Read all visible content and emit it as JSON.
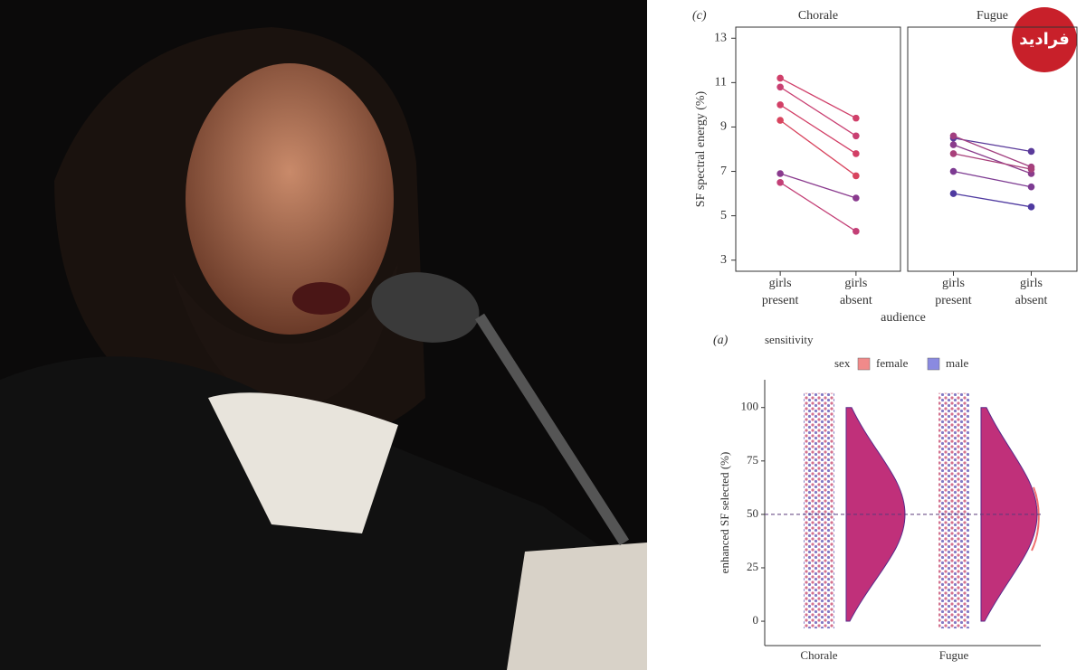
{
  "watermark": "فرادید",
  "chart_data": [
    {
      "type": "slope",
      "label": "(c)",
      "x_label": "audience",
      "y_label": "SF spectral energy (%)",
      "categories": [
        "girls present",
        "girls absent"
      ],
      "ylim": [
        2.5,
        13.5
      ],
      "yticks": [
        3,
        5,
        7,
        9,
        11,
        13
      ],
      "panels": [
        {
          "title": "Chorale",
          "series": [
            {
              "color": "#d0406a",
              "values": [
                11.2,
                9.4
              ]
            },
            {
              "color": "#c94072",
              "values": [
                10.8,
                8.6
              ]
            },
            {
              "color": "#d23f66",
              "values": [
                10.0,
                7.8
              ]
            },
            {
              "color": "#d8445e",
              "values": [
                9.3,
                6.8
              ]
            },
            {
              "color": "#8a3a8e",
              "values": [
                6.9,
                5.8
              ]
            },
            {
              "color": "#c33f76",
              "values": [
                6.5,
                4.3
              ]
            }
          ]
        },
        {
          "title": "Fugue",
          "series": [
            {
              "color": "#5a3a9a",
              "values": [
                8.5,
                7.9
              ]
            },
            {
              "color": "#a23f80",
              "values": [
                8.6,
                7.2
              ]
            },
            {
              "color": "#8a3c8c",
              "values": [
                8.2,
                6.9
              ]
            },
            {
              "color": "#a8407a",
              "values": [
                7.8,
                7.1
              ]
            },
            {
              "color": "#7d3b92",
              "values": [
                7.0,
                6.3
              ]
            },
            {
              "color": "#4f3aa0",
              "values": [
                6.0,
                5.4
              ]
            }
          ]
        }
      ]
    },
    {
      "type": "raincloud",
      "label": "(a)",
      "title": "sensitivity",
      "legend_title": "sex",
      "y_label": "enhanced SF selected (%)",
      "categories": [
        "Chorale",
        "Fugue"
      ],
      "ylim": [
        -11.4,
        113
      ],
      "yticks": [
        0,
        25,
        50,
        75,
        100
      ],
      "reference_line": 50,
      "series": [
        {
          "name": "female",
          "color": "#f08a8a"
        },
        {
          "name": "male",
          "color": "#8a8ae0"
        }
      ]
    }
  ]
}
